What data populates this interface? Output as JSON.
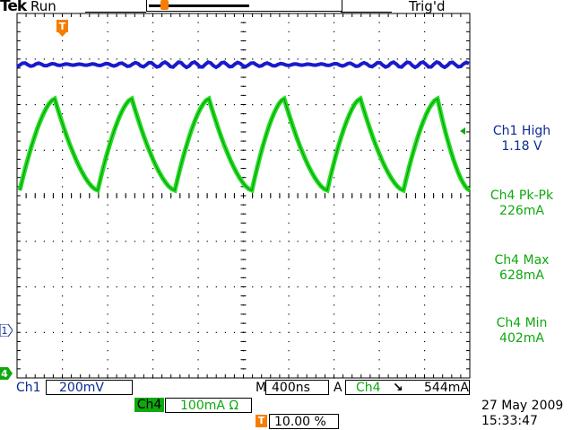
{
  "header": {
    "brand": "Tek",
    "run_state": "Run",
    "trigger_state": "Trig'd"
  },
  "measurements": [
    {
      "label": "Ch1 High",
      "value": "1.18 V",
      "color": "#0a2b8f"
    },
    {
      "label": "Ch4 Pk-Pk",
      "value": "226mA",
      "color": "#0fa80f"
    },
    {
      "label": "Ch4 Max",
      "value": "628mA",
      "color": "#0fa80f"
    },
    {
      "label": "Ch4 Min",
      "value": "402mA",
      "color": "#0fa80f"
    }
  ],
  "markers": {
    "ch1": "1",
    "ch4": "4",
    "trigger": "T"
  },
  "status": {
    "ch1_label": "Ch1",
    "ch1_scale": "200mV",
    "ch4_label": "Ch4",
    "ch4_scale": "100mA Ω",
    "timebase_label": "M",
    "timebase": "400ns",
    "acq_label": "A",
    "trigger_source": "Ch4",
    "trigger_slope": "↘",
    "trigger_level": "544mA",
    "trigger_position_label": "T",
    "trigger_position": "10.00 %",
    "date": "27 May 2009",
    "time": "15:33:47"
  },
  "colors": {
    "ch1": "#1a1acc",
    "ch4": "#22dd22",
    "grid": "#000000",
    "trigger": "#f57d00"
  },
  "waveform": {
    "ch1_high_level_v": 1.18,
    "ch4_min_ma": 402,
    "ch4_max_ma": 628,
    "periods_visible": 6
  }
}
